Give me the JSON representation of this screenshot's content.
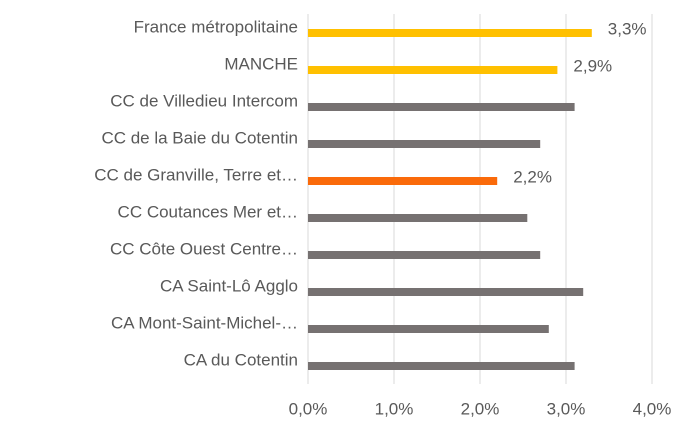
{
  "chart_data": {
    "type": "hbar",
    "categories": [
      "France métropolitaine",
      "MANCHE",
      "CC de Villedieu Intercom",
      "CC de la Baie du Cotentin",
      "CC de Granville, Terre et…",
      "CC Coutances Mer et…",
      "CC Côte Ouest Centre…",
      "CA Saint-Lô Agglo",
      "CA Mont-Saint-Michel-…",
      "CA du Cotentin"
    ],
    "values": [
      3.3,
      2.9,
      3.1,
      2.7,
      2.2,
      2.55,
      2.7,
      3.2,
      2.8,
      3.1
    ],
    "value_labels": [
      "3,3%",
      "2,9%",
      null,
      null,
      "2,2%",
      null,
      null,
      null,
      null,
      null
    ],
    "colors": [
      "#ffc000",
      "#ffc000",
      "#767171",
      "#767171",
      "#fa6a0a",
      "#767171",
      "#767171",
      "#767171",
      "#767171",
      "#767171"
    ],
    "xlim": [
      0,
      4
    ],
    "xticks": [
      {
        "value": 0,
        "label": "0,0%"
      },
      {
        "value": 1,
        "label": "1,0%"
      },
      {
        "value": 2,
        "label": "2,0%"
      },
      {
        "value": 3,
        "label": "3,0%"
      },
      {
        "value": 4,
        "label": "4,0%"
      }
    ],
    "grid": true
  }
}
